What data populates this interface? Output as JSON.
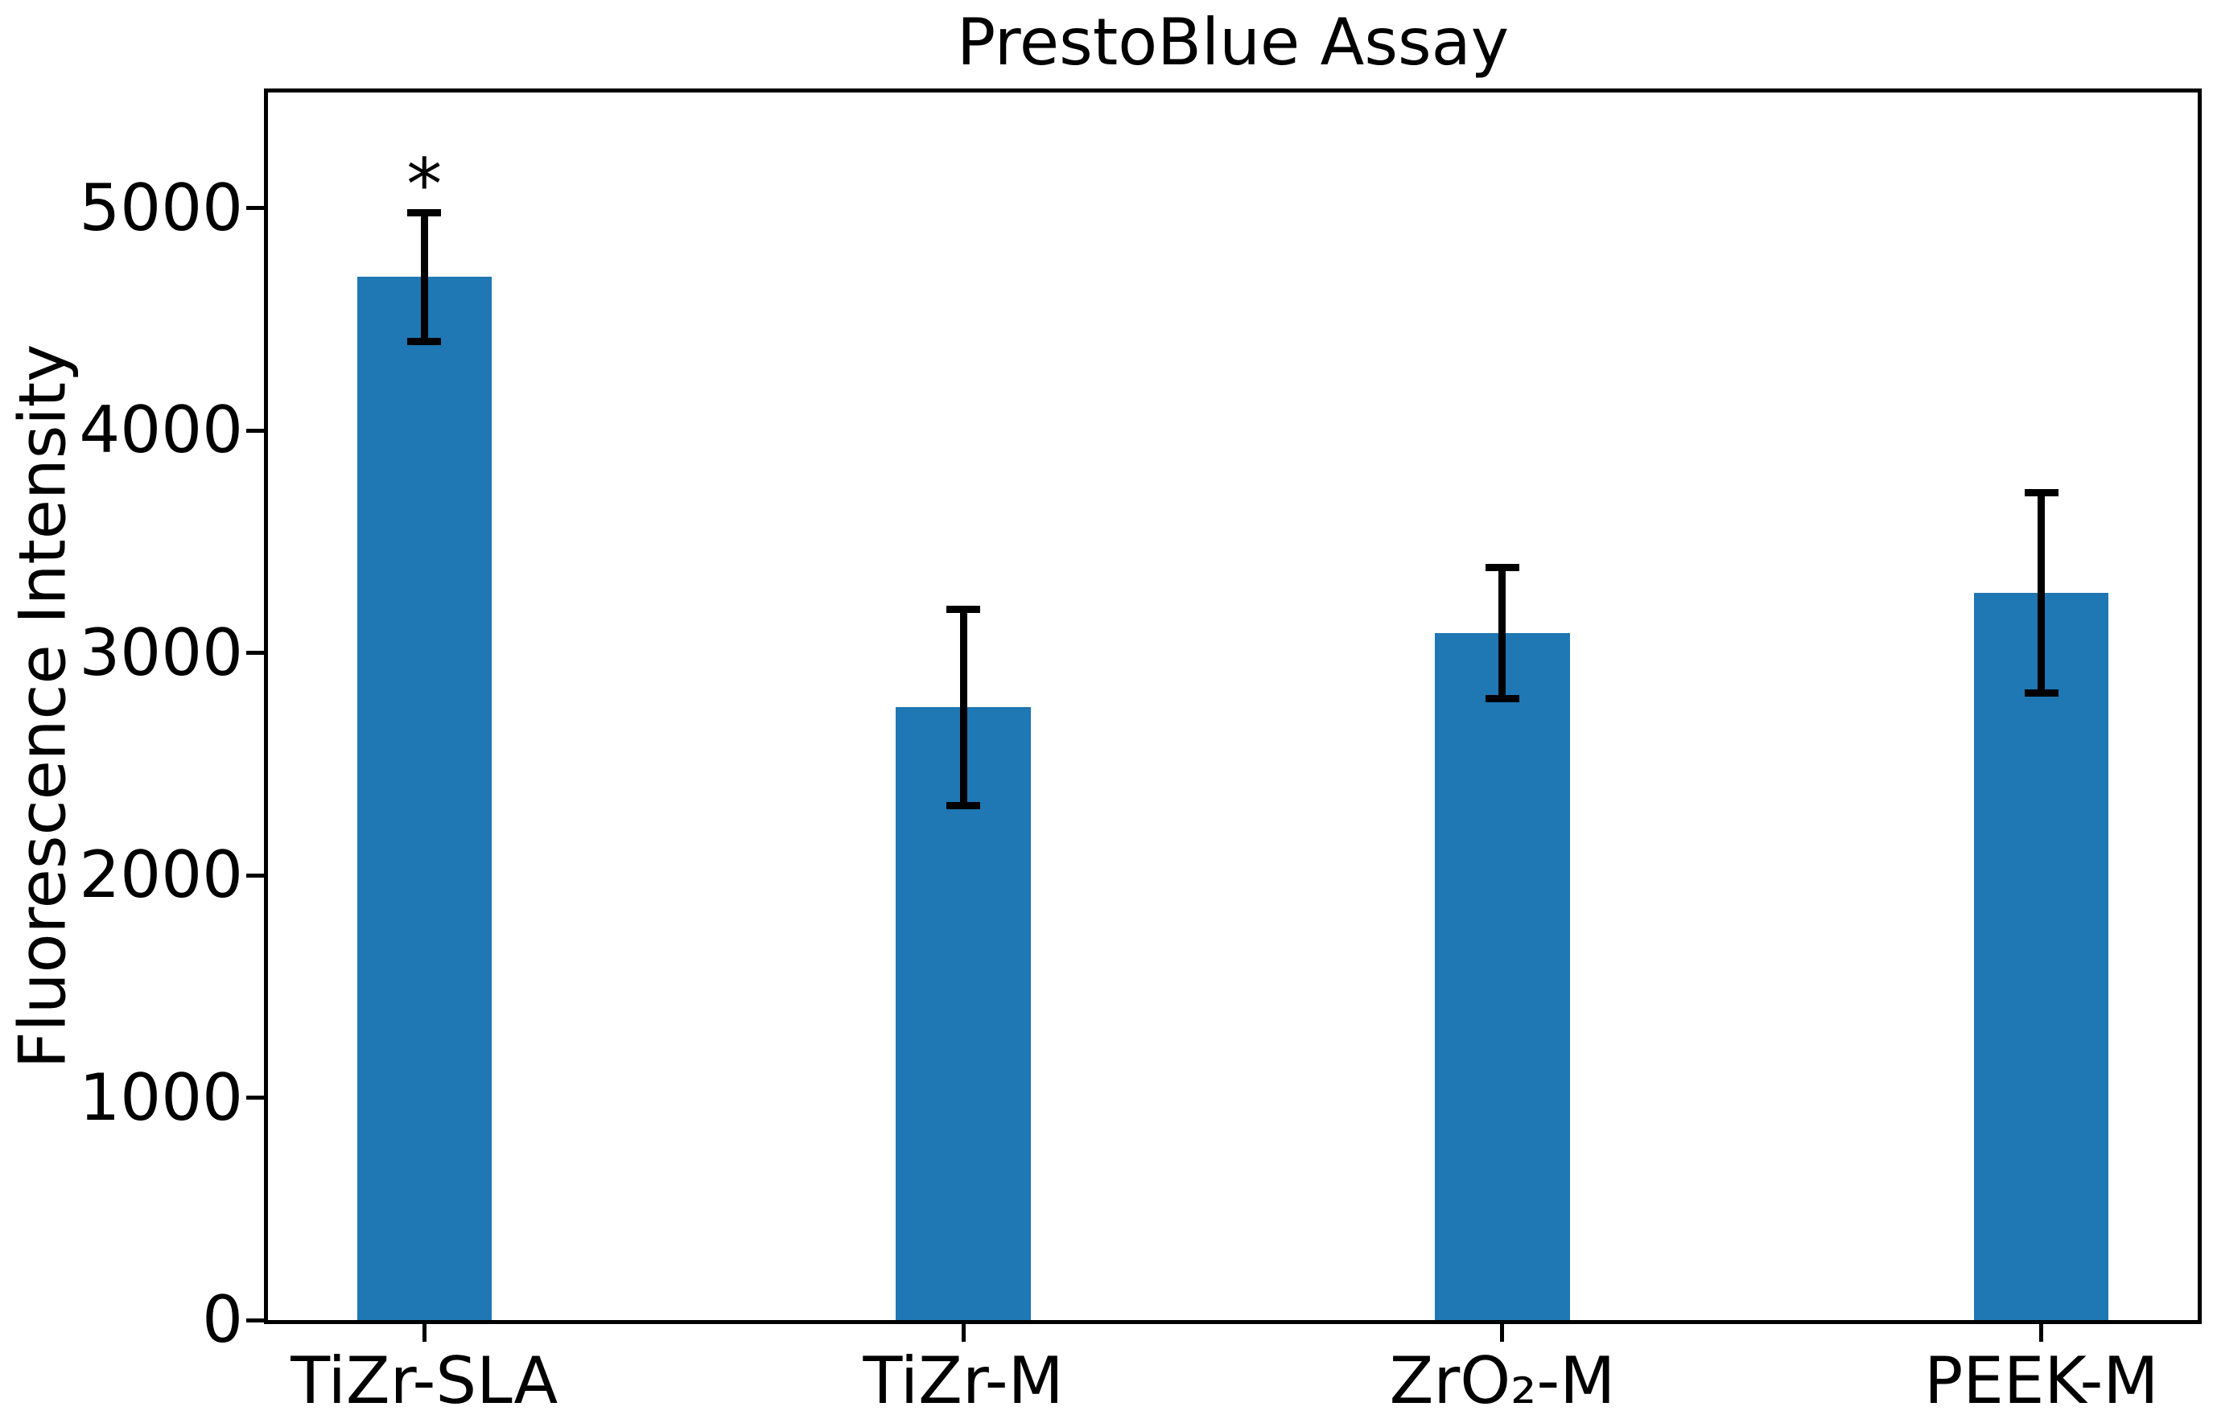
{
  "chart_data": {
    "type": "bar",
    "title": "PrestoBlue Assay",
    "ylabel": "Fluorescence Intensity",
    "xlabel": "",
    "categories": [
      "TiZr-SLA",
      "TiZr-M",
      "ZrO₂-M",
      "PEEK-M"
    ],
    "values": [
      4690,
      2755,
      3090,
      3270
    ],
    "errors": [
      290,
      440,
      295,
      450
    ],
    "annotations": [
      {
        "category": "TiZr-SLA",
        "text": "*"
      }
    ],
    "yticks": [
      0,
      1000,
      2000,
      3000,
      4000,
      5000
    ],
    "ylim": [
      0,
      5520
    ],
    "xlim": [
      -0.29,
      3.29
    ],
    "bar_width": 0.25,
    "grid": false,
    "legend_position": "none",
    "bar_color": "#1f77b4",
    "error_color": "#000000",
    "axis_color": "#000000",
    "background_color": "#ffffff"
  }
}
